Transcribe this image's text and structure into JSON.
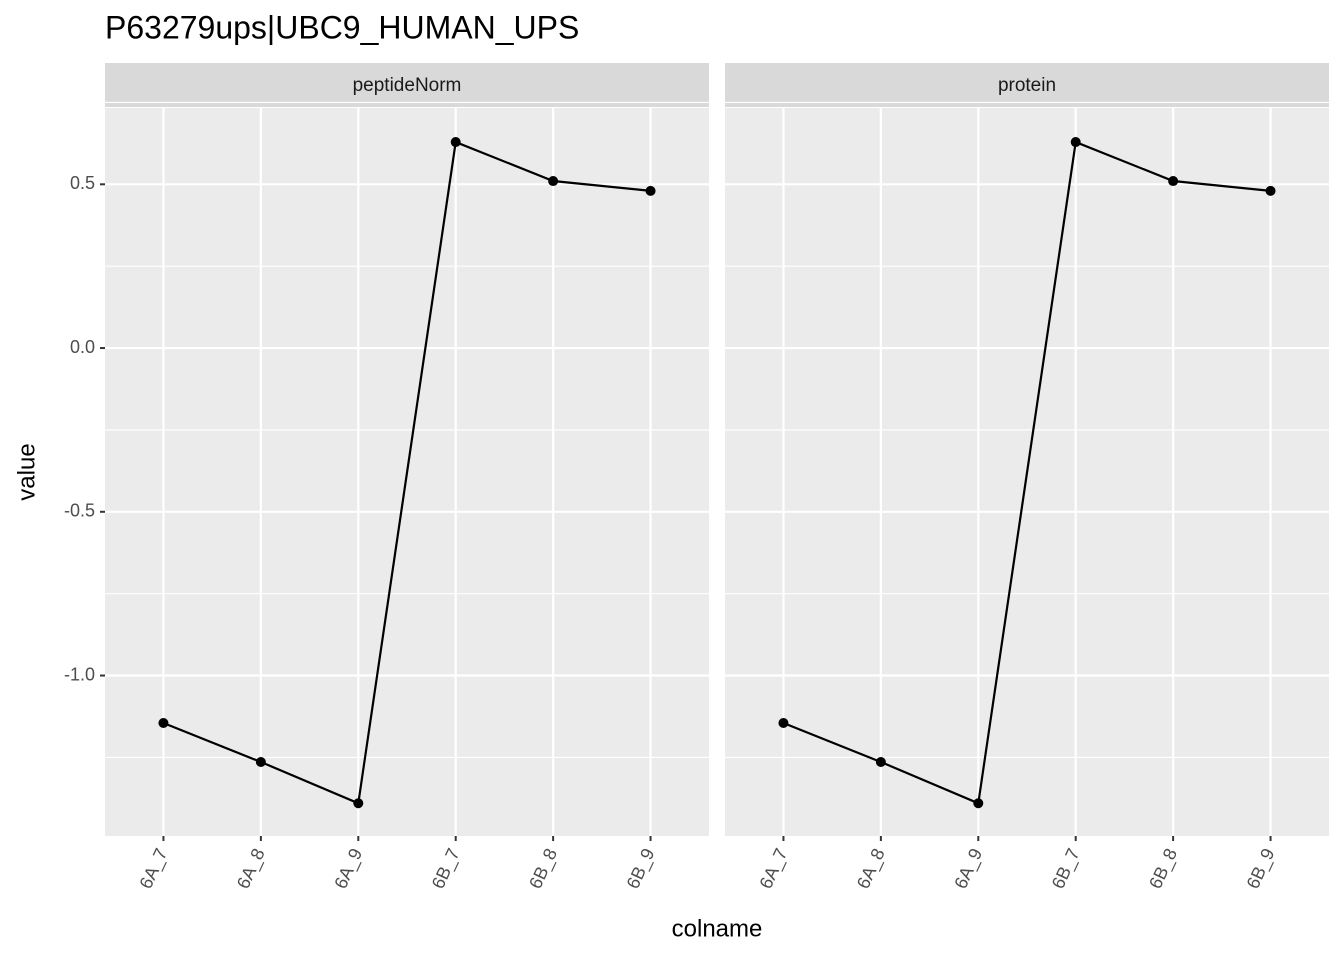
{
  "chart_data": {
    "type": "line",
    "title": "P63279ups|UBC9_HUMAN_UPS",
    "x_label": "colname",
    "y_label": "value",
    "facet": true,
    "categories": [
      "6A_7",
      "6A_8",
      "6A_9",
      "6B_7",
      "6B_8",
      "6B_9"
    ],
    "series": [
      {
        "name": "peptideNorm",
        "color": "#000000",
        "values": [
          -1.145,
          -1.264,
          -1.39,
          0.629,
          0.51,
          0.48
        ]
      },
      {
        "name": "protein",
        "color": "#000000",
        "values": [
          -1.145,
          -1.264,
          -1.39,
          0.629,
          0.51,
          0.48
        ]
      }
    ],
    "ylim": [
      -1.49,
      0.733
    ],
    "yticks": [
      0.5,
      {
        "value": 0,
        "label": "0.0"
      },
      -0.5,
      {
        "value": -1,
        "label": "-1.0"
      }
    ],
    "yminor": [
      0.75,
      0.25,
      -0.25,
      -0.75,
      -1.25
    ],
    "grid": true
  }
}
